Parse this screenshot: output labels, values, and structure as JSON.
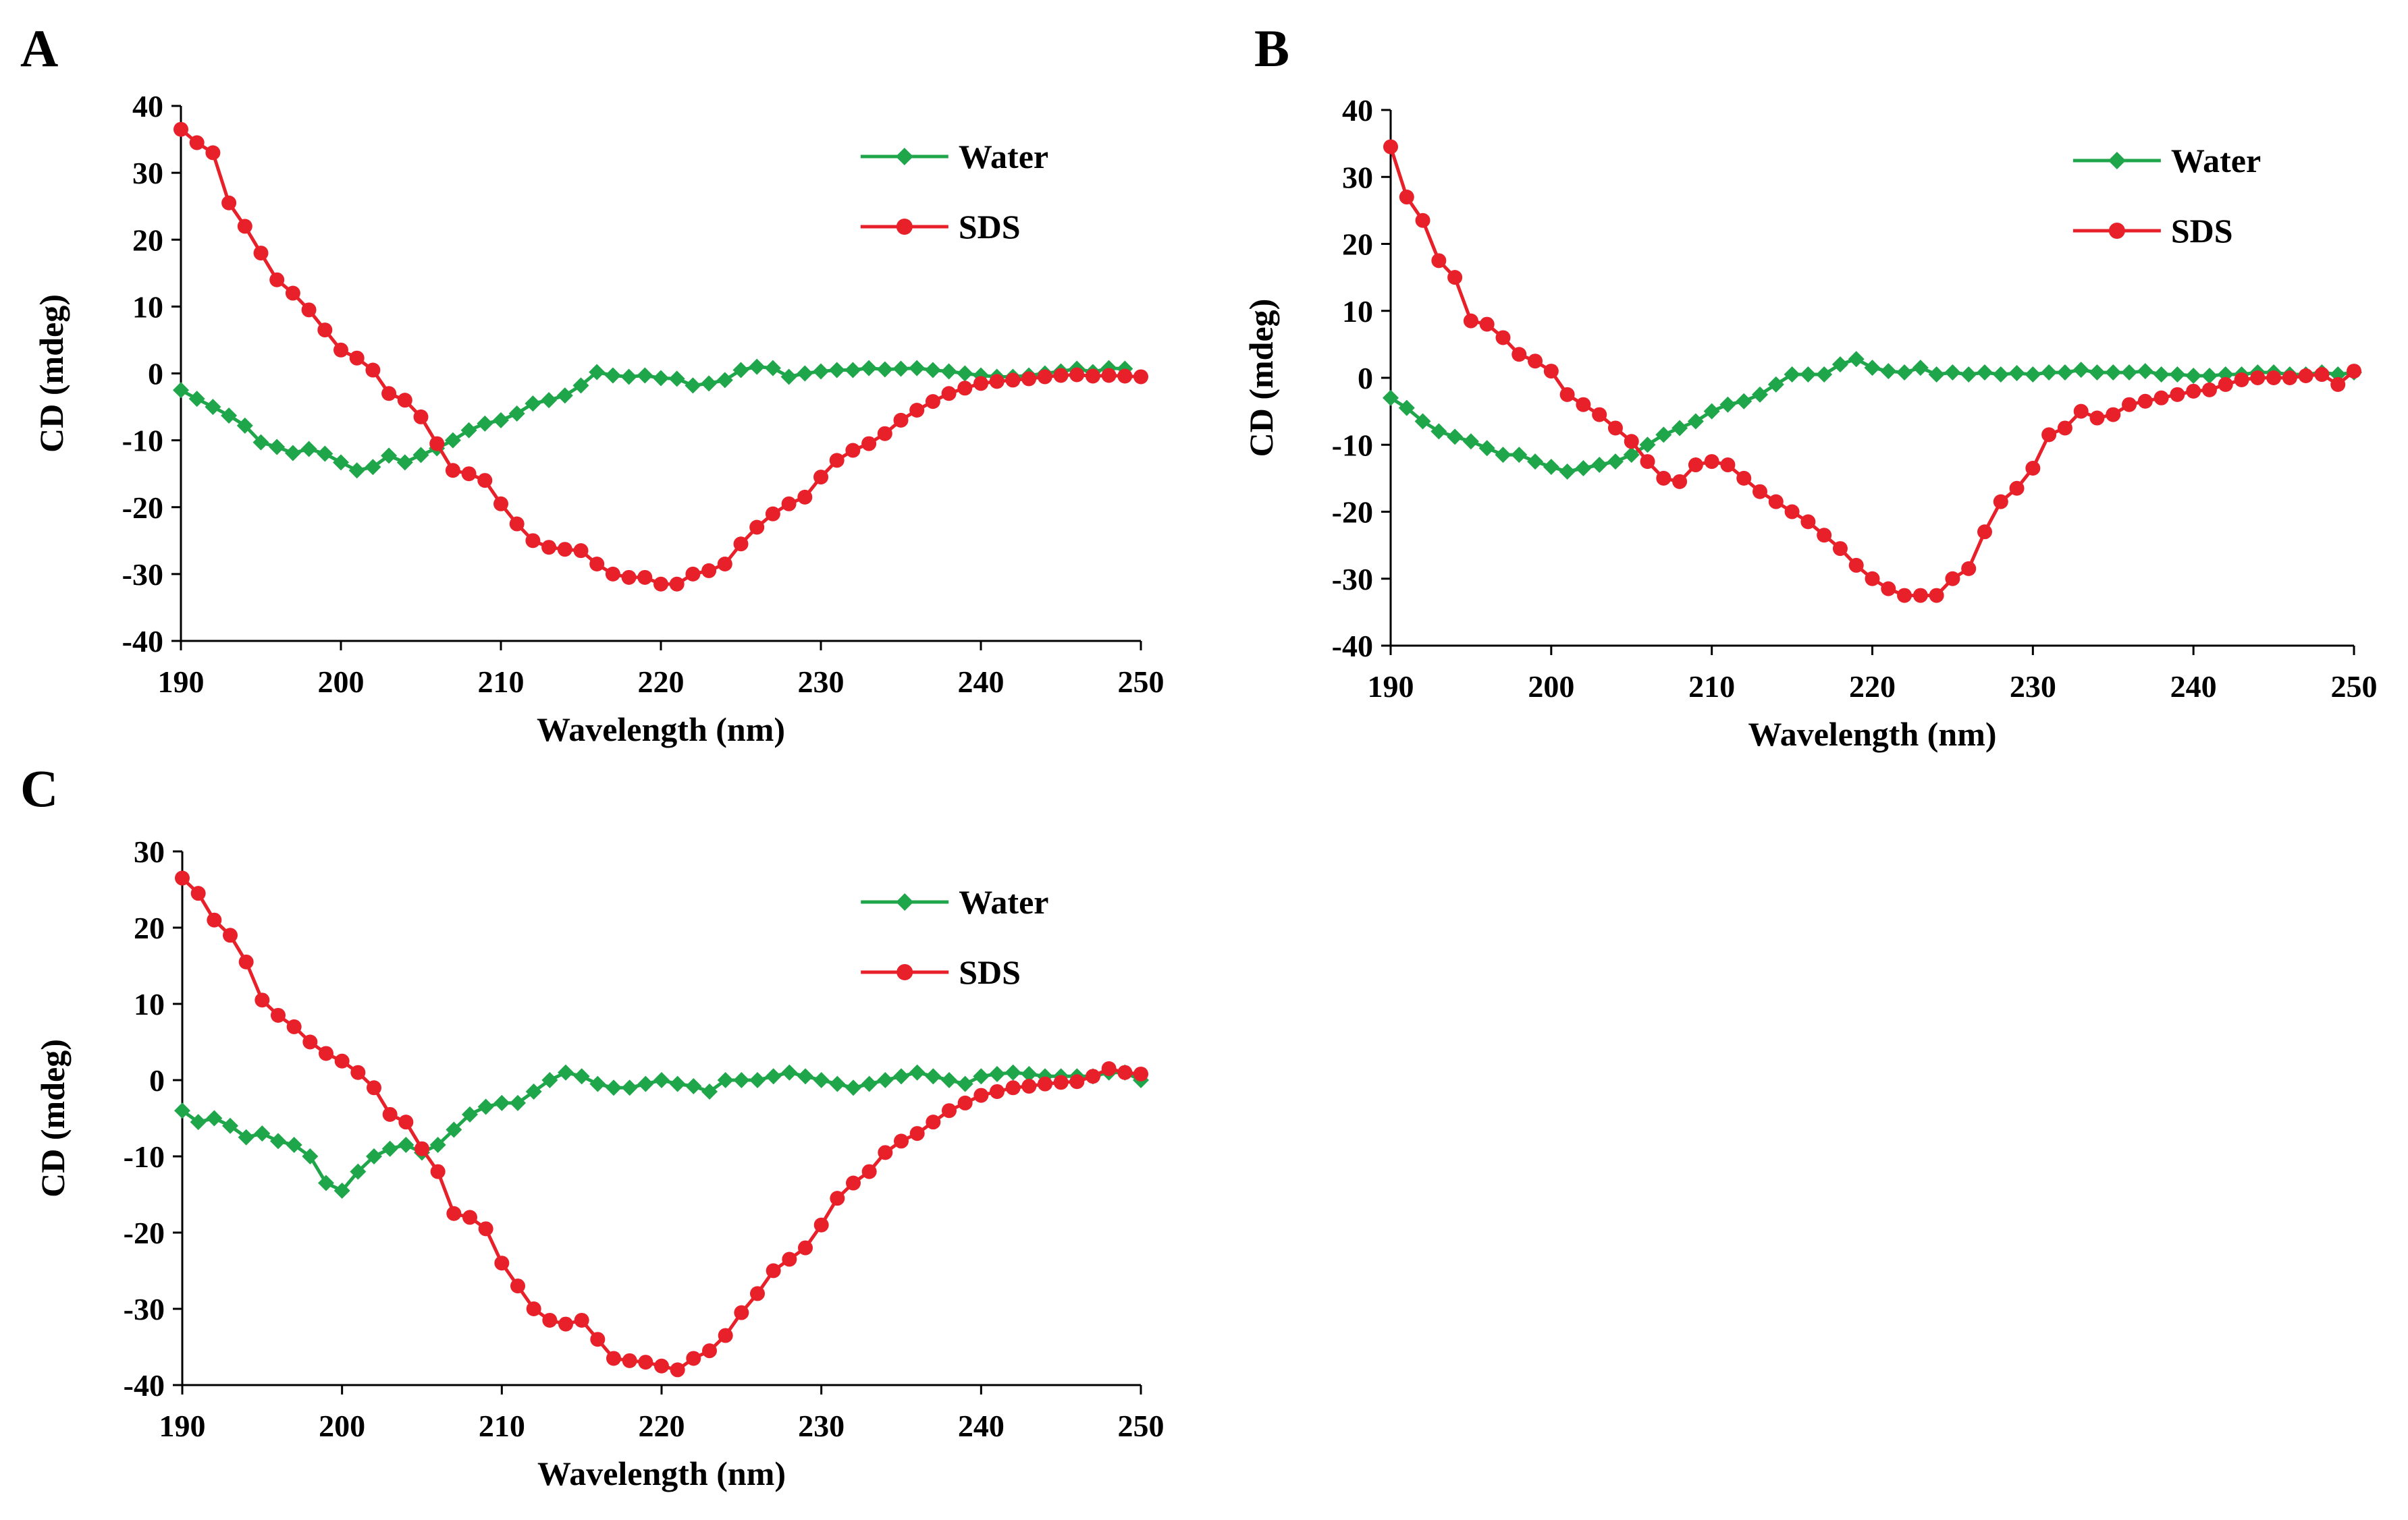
{
  "chart_data": [
    {
      "type": "line",
      "panel_label": "A",
      "xlabel": "Wavelength (nm)",
      "ylabel": "CD (mdeg)",
      "xlim": [
        190,
        250
      ],
      "ylim": [
        -40,
        40
      ],
      "xticks": [
        190,
        200,
        210,
        220,
        230,
        240,
        250
      ],
      "yticks": [
        40,
        30,
        20,
        10,
        0,
        -10,
        -20,
        -30,
        -40
      ],
      "grid": false,
      "legend": "top-right",
      "series": [
        {
          "name": "Water",
          "color": "#1fa64a",
          "marker": "diamond",
          "x": [
            190,
            191,
            192,
            193,
            194,
            195,
            196,
            197,
            198,
            199,
            200,
            201,
            202,
            203,
            204,
            205,
            206,
            207,
            208,
            209,
            210,
            211,
            212,
            213,
            214,
            215,
            216,
            217,
            218,
            219,
            220,
            221,
            222,
            223,
            224,
            225,
            226,
            227,
            228,
            229,
            230,
            231,
            232,
            233,
            234,
            235,
            236,
            237,
            238,
            239,
            240,
            241,
            242,
            243,
            244,
            245,
            246,
            247,
            248,
            249
          ],
          "values": [
            -2.5,
            -3.8,
            -5.0,
            -6.3,
            -7.8,
            -10.3,
            -11.0,
            -11.9,
            -11.3,
            -12.0,
            -13.3,
            -14.5,
            -14.0,
            -12.3,
            -13.3,
            -12.2,
            -11.2,
            -10.0,
            -8.5,
            -7.5,
            -7.0,
            -6.0,
            -4.5,
            -4.0,
            -3.3,
            -1.8,
            0.2,
            -0.3,
            -0.5,
            -0.3,
            -0.7,
            -0.8,
            -1.8,
            -1.5,
            -1.0,
            0.5,
            1.0,
            0.8,
            -0.5,
            0.0,
            0.3,
            0.5,
            0.5,
            0.8,
            0.6,
            0.7,
            0.8,
            0.5,
            0.3,
            0.0,
            -0.3,
            -0.5,
            -0.5,
            -0.3,
            0.0,
            0.3,
            0.7,
            0.2,
            0.8,
            0.7
          ]
        },
        {
          "name": "SDS",
          "color": "#e8202a",
          "marker": "circle",
          "x": [
            190,
            191,
            192,
            193,
            194,
            195,
            196,
            197,
            198,
            199,
            200,
            201,
            202,
            203,
            204,
            205,
            206,
            207,
            208,
            209,
            210,
            211,
            212,
            213,
            214,
            215,
            216,
            217,
            218,
            219,
            220,
            221,
            222,
            223,
            224,
            225,
            226,
            227,
            228,
            229,
            230,
            231,
            232,
            233,
            234,
            235,
            236,
            237,
            238,
            239,
            240,
            241,
            242,
            243,
            244,
            245,
            246,
            247,
            248,
            249,
            250
          ],
          "values": [
            36.5,
            34.5,
            33.0,
            25.5,
            22.0,
            18.0,
            14.0,
            12.0,
            9.5,
            6.5,
            3.5,
            2.3,
            0.5,
            -3.0,
            -4.0,
            -6.5,
            -10.5,
            -14.5,
            -15.0,
            -16.0,
            -19.5,
            -22.5,
            -25.0,
            -26.0,
            -26.3,
            -26.5,
            -28.5,
            -30.0,
            -30.5,
            -30.5,
            -31.5,
            -31.5,
            -30.0,
            -29.5,
            -28.5,
            -25.5,
            -23.0,
            -21.0,
            -19.5,
            -18.5,
            -15.5,
            -13.0,
            -11.5,
            -10.5,
            -9.0,
            -7.0,
            -5.5,
            -4.2,
            -3.0,
            -2.2,
            -1.5,
            -1.2,
            -1.0,
            -0.8,
            -0.5,
            -0.3,
            -0.2,
            -0.4,
            -0.3,
            -0.4,
            -0.5
          ]
        }
      ]
    },
    {
      "type": "line",
      "panel_label": "B",
      "xlabel": "Wavelength (nm)",
      "ylabel": "CD (mdeg)",
      "xlim": [
        190,
        250
      ],
      "ylim": [
        -40,
        40
      ],
      "xticks": [
        190,
        200,
        210,
        220,
        230,
        240,
        250
      ],
      "yticks": [
        40,
        30,
        20,
        10,
        0,
        -10,
        -20,
        -30,
        -40
      ],
      "grid": false,
      "legend": "top-right",
      "series": [
        {
          "name": "Water",
          "color": "#1fa64a",
          "marker": "diamond",
          "x": [
            190,
            191,
            192,
            193,
            194,
            195,
            196,
            197,
            198,
            199,
            200,
            201,
            202,
            203,
            204,
            205,
            206,
            207,
            208,
            209,
            210,
            211,
            212,
            213,
            214,
            215,
            216,
            217,
            218,
            219,
            220,
            221,
            222,
            223,
            224,
            225,
            226,
            227,
            228,
            229,
            230,
            231,
            232,
            233,
            234,
            235,
            236,
            237,
            238,
            239,
            240,
            241,
            242,
            243,
            244,
            245,
            246,
            247,
            248,
            249,
            250
          ],
          "values": [
            -3.0,
            -4.5,
            -6.5,
            -8.0,
            -8.8,
            -9.5,
            -10.5,
            -11.5,
            -11.5,
            -12.5,
            -13.3,
            -14.0,
            -13.5,
            -13.0,
            -12.5,
            -11.5,
            -10.0,
            -8.5,
            -7.5,
            -6.5,
            -5.0,
            -4.0,
            -3.5,
            -2.5,
            -1.0,
            0.5,
            0.5,
            0.5,
            2.0,
            2.8,
            1.5,
            1.0,
            0.8,
            1.5,
            0.5,
            0.8,
            0.5,
            0.8,
            0.5,
            0.7,
            0.5,
            0.8,
            0.8,
            1.2,
            0.8,
            0.8,
            0.8,
            1.0,
            0.5,
            0.5,
            0.3,
            0.3,
            0.5,
            0.5,
            0.8,
            0.8,
            0.5,
            0.5,
            0.8,
            0.5,
            0.8
          ]
        },
        {
          "name": "SDS",
          "color": "#e8202a",
          "marker": "circle",
          "x": [
            190,
            191,
            192,
            193,
            194,
            195,
            196,
            197,
            198,
            199,
            200,
            201,
            202,
            203,
            204,
            205,
            206,
            207,
            208,
            209,
            210,
            211,
            212,
            213,
            214,
            215,
            216,
            217,
            218,
            219,
            220,
            221,
            222,
            223,
            224,
            225,
            226,
            227,
            228,
            229,
            230,
            231,
            232,
            233,
            234,
            235,
            236,
            237,
            238,
            239,
            240,
            241,
            242,
            243,
            244,
            245,
            246,
            247,
            248,
            249,
            250
          ],
          "values": [
            34.5,
            27.0,
            23.5,
            17.5,
            15.0,
            8.5,
            8.0,
            6.0,
            3.5,
            2.5,
            1.0,
            -2.5,
            -4.0,
            -5.5,
            -7.5,
            -9.5,
            -12.5,
            -15.0,
            -15.5,
            -13.0,
            -12.5,
            -13.0,
            -15.0,
            -17.0,
            -18.5,
            -20.0,
            -21.5,
            -23.5,
            -25.5,
            -28.0,
            -30.0,
            -31.5,
            -32.5,
            -32.5,
            -32.5,
            -30.0,
            -28.5,
            -23.0,
            -18.5,
            -16.5,
            -13.5,
            -8.5,
            -7.5,
            -5.0,
            -6.0,
            -5.5,
            -4.0,
            -3.5,
            -3.0,
            -2.5,
            -2.0,
            -1.8,
            -1.0,
            -0.3,
            0.0,
            0.0,
            0.0,
            0.3,
            0.5,
            -1.0,
            1.0
          ]
        }
      ]
    },
    {
      "type": "line",
      "panel_label": "C",
      "xlabel": "Wavelength (nm)",
      "ylabel": "CD (mdeg)",
      "xlim": [
        190,
        250
      ],
      "ylim": [
        -40,
        30
      ],
      "xticks": [
        190,
        200,
        210,
        220,
        230,
        240,
        250
      ],
      "yticks": [
        30,
        20,
        10,
        0,
        -10,
        -20,
        -30,
        -40
      ],
      "grid": false,
      "legend": "top-right",
      "series": [
        {
          "name": "Water",
          "color": "#1fa64a",
          "marker": "diamond",
          "x": [
            190,
            191,
            192,
            193,
            194,
            195,
            196,
            197,
            198,
            199,
            200,
            201,
            202,
            203,
            204,
            205,
            206,
            207,
            208,
            209,
            210,
            211,
            212,
            213,
            214,
            215,
            216,
            217,
            218,
            219,
            220,
            221,
            222,
            223,
            224,
            225,
            226,
            227,
            228,
            229,
            230,
            231,
            232,
            233,
            234,
            235,
            236,
            237,
            238,
            239,
            240,
            241,
            242,
            243,
            244,
            245,
            246,
            247,
            248,
            249,
            250
          ],
          "values": [
            -4.0,
            -5.5,
            -5.0,
            -6.0,
            -7.5,
            -7.0,
            -8.0,
            -8.5,
            -10.0,
            -13.5,
            -14.5,
            -12.0,
            -10.0,
            -9.0,
            -8.5,
            -9.5,
            -8.5,
            -6.5,
            -4.5,
            -3.5,
            -3.0,
            -3.0,
            -1.5,
            0.0,
            1.0,
            0.5,
            -0.5,
            -1.0,
            -1.0,
            -0.5,
            0.0,
            -0.5,
            -0.8,
            -1.5,
            0.0,
            0.0,
            0.0,
            0.5,
            1.0,
            0.5,
            0.0,
            -0.5,
            -1.0,
            -0.5,
            0.0,
            0.5,
            1.0,
            0.5,
            0.0,
            -0.5,
            0.5,
            0.8,
            1.0,
            0.8,
            0.5,
            0.5,
            0.5,
            0.5,
            1.0,
            1.0,
            0.0
          ]
        },
        {
          "name": "SDS",
          "color": "#e8202a",
          "marker": "circle",
          "x": [
            190,
            191,
            192,
            193,
            194,
            195,
            196,
            197,
            198,
            199,
            200,
            201,
            202,
            203,
            204,
            205,
            206,
            207,
            208,
            209,
            210,
            211,
            212,
            213,
            214,
            215,
            216,
            217,
            218,
            219,
            220,
            221,
            222,
            223,
            224,
            225,
            226,
            227,
            228,
            229,
            230,
            231,
            232,
            233,
            234,
            235,
            236,
            237,
            238,
            239,
            240,
            241,
            242,
            243,
            244,
            245,
            246,
            247,
            248,
            249,
            250
          ],
          "values": [
            26.5,
            24.5,
            21.0,
            19.0,
            15.5,
            10.5,
            8.5,
            7.0,
            5.0,
            3.5,
            2.5,
            1.0,
            -1.0,
            -4.5,
            -5.5,
            -9.0,
            -12.0,
            -17.5,
            -18.0,
            -19.5,
            -24.0,
            -27.0,
            -30.0,
            -31.5,
            -32.0,
            -31.5,
            -34.0,
            -36.5,
            -36.8,
            -37.0,
            -37.5,
            -38.0,
            -36.5,
            -35.5,
            -33.5,
            -30.5,
            -28.0,
            -25.0,
            -23.5,
            -22.0,
            -19.0,
            -15.5,
            -13.5,
            -12.0,
            -9.5,
            -8.0,
            -7.0,
            -5.5,
            -4.0,
            -3.0,
            -2.0,
            -1.5,
            -1.0,
            -0.8,
            -0.5,
            -0.3,
            -0.2,
            0.5,
            1.5,
            1.0,
            0.8
          ]
        }
      ]
    }
  ]
}
